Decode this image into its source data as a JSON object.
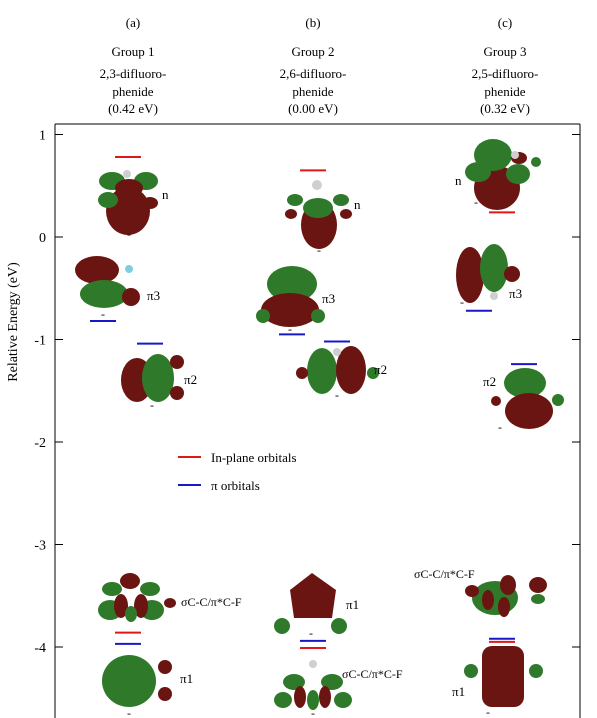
{
  "columns": [
    {
      "panel": "(a)",
      "group": "Group 1",
      "name_line1": "2,3-difluoro-",
      "name_line2": "phenide",
      "energy": "(0.42 eV)"
    },
    {
      "panel": "(b)",
      "group": "Group 2",
      "name_line1": "2,6-difluoro-",
      "name_line2": "phenide",
      "energy": "(0.00 eV)"
    },
    {
      "panel": "(c)",
      "group": "Group 3",
      "name_line1": "2,5-difluoro-",
      "name_line2": "phenide",
      "energy": "(0.32 eV)"
    }
  ],
  "axis": {
    "label": "Relative Energy (eV)",
    "ticks": [
      "1",
      "0",
      "-1",
      "-2",
      "-3",
      "-4"
    ],
    "tick_values": [
      1,
      0,
      -1,
      -2,
      -3,
      -4
    ]
  },
  "legend": [
    {
      "label": "In-plane orbitals",
      "color": "#e01818"
    },
    {
      "label": "π orbitals",
      "color": "#1818c8"
    }
  ],
  "colors": {
    "in_plane": "#e01818",
    "pi": "#1818c8",
    "lobe_dark": "#6b1512",
    "lobe_green": "#2f7a2a"
  },
  "orbital_labels": {
    "n": "n",
    "pi3": "π3",
    "pi2": "π2",
    "pi1": "π1",
    "sigma": "σC-C/π*C-F"
  },
  "minus_sign": "-",
  "levels": [
    {
      "group": 1,
      "orbital": "n",
      "type": "in-plane",
      "energy": 0.78
    },
    {
      "group": 1,
      "orbital": "pi3",
      "type": "pi",
      "energy": -0.82
    },
    {
      "group": 1,
      "orbital": "pi2",
      "type": "pi",
      "energy": -1.04
    },
    {
      "group": 1,
      "orbital": "sigma",
      "type": "in-plane",
      "energy": -3.86
    },
    {
      "group": 1,
      "orbital": "pi1",
      "type": "pi",
      "energy": -3.97
    },
    {
      "group": 2,
      "orbital": "n",
      "type": "in-plane",
      "energy": 0.65
    },
    {
      "group": 2,
      "orbital": "pi3",
      "type": "pi",
      "energy": -0.95
    },
    {
      "group": 2,
      "orbital": "pi2",
      "type": "pi",
      "energy": -1.02
    },
    {
      "group": 2,
      "orbital": "pi1",
      "type": "pi",
      "energy": -3.94
    },
    {
      "group": 2,
      "orbital": "sigma",
      "type": "in-plane",
      "energy": -4.01
    },
    {
      "group": 3,
      "orbital": "n",
      "type": "in-plane",
      "energy": 0.24
    },
    {
      "group": 3,
      "orbital": "pi3",
      "type": "pi",
      "energy": -0.72
    },
    {
      "group": 3,
      "orbital": "pi2",
      "type": "pi",
      "energy": -1.24
    },
    {
      "group": 3,
      "orbital": "pi1",
      "type": "pi",
      "energy": -3.92
    },
    {
      "group": 3,
      "orbital": "sigma",
      "type": "in-plane",
      "energy": -3.95
    }
  ]
}
